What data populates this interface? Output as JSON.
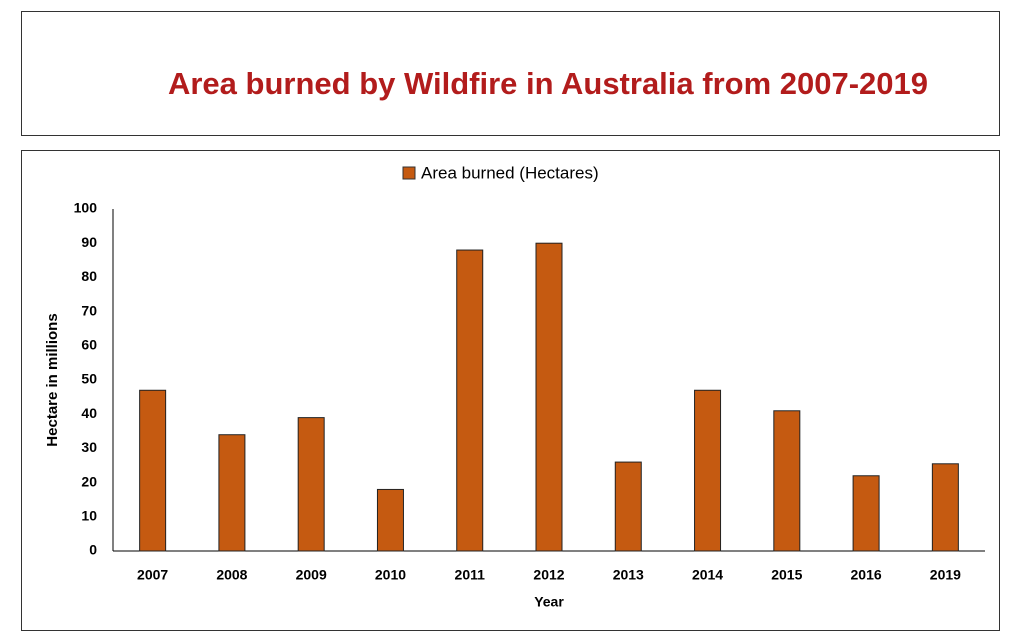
{
  "chart_data": {
    "type": "bar",
    "title": "Area burned by Wildfire in Australia from 2007-2019",
    "x_label": "Year",
    "y_label": "Hectare in millions",
    "categories": [
      "2007",
      "2008",
      "2009",
      "2010",
      "2011",
      "2012",
      "2013",
      "2014",
      "2015",
      "2016",
      "2019"
    ],
    "series": [
      {
        "name": "Area burned (Hectares)",
        "color": "#c55a11",
        "values": [
          47,
          34,
          39,
          18,
          88,
          90,
          26,
          47,
          41,
          22,
          25.5
        ]
      }
    ],
    "ylim": [
      0,
      100
    ],
    "yticks": [
      0,
      10,
      20,
      30,
      40,
      50,
      60,
      70,
      80,
      90,
      100
    ],
    "grid": false,
    "legend": "top"
  }
}
